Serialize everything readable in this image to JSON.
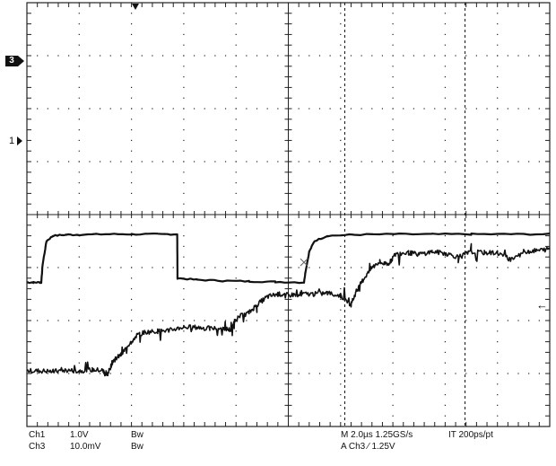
{
  "chart_data": {
    "type": "line",
    "grid": true,
    "x_divisions": 10,
    "y_divisions": 8,
    "series": [
      {
        "name": "Ch1",
        "values_note": "",
        "points": [
          [
            0,
            2.72
          ],
          [
            0.25,
            2.72
          ],
          [
            0.5,
            2.72
          ],
          [
            0.55,
            2.72
          ],
          [
            0.6,
            3.05
          ],
          [
            0.75,
            3.5
          ],
          [
            1.0,
            3.6
          ],
          [
            1.5,
            3.62
          ],
          [
            2.0,
            3.62
          ],
          [
            3.0,
            3.63
          ],
          [
            4.0,
            3.63
          ],
          [
            5.0,
            3.63
          ],
          [
            5.75,
            3.63
          ],
          [
            5.76,
            2.8
          ],
          [
            6.5,
            2.77
          ],
          [
            7.5,
            2.75
          ],
          [
            8.5,
            2.74
          ],
          [
            9.5,
            2.73
          ],
          [
            10.6,
            2.72
          ],
          [
            10.65,
            2.9
          ],
          [
            10.8,
            3.3
          ],
          [
            11.0,
            3.5
          ],
          [
            11.5,
            3.6
          ],
          [
            12.5,
            3.62
          ],
          [
            14,
            3.63
          ],
          [
            15.5,
            3.63
          ],
          [
            17,
            3.63
          ],
          [
            18.5,
            3.63
          ],
          [
            20,
            3.63
          ]
        ]
      },
      {
        "name": "Ch3",
        "points": [
          [
            0,
            1.05
          ],
          [
            0.5,
            1.05
          ],
          [
            1.0,
            1.04
          ],
          [
            1.5,
            1.06
          ],
          [
            2.0,
            1.05
          ],
          [
            2.5,
            1.07
          ],
          [
            2.9,
            1.06
          ],
          [
            3.0,
            0.98
          ],
          [
            3.1,
            1.0
          ],
          [
            3.3,
            1.25
          ],
          [
            3.6,
            1.35
          ],
          [
            3.9,
            1.55
          ],
          [
            4.2,
            1.72
          ],
          [
            4.5,
            1.78
          ],
          [
            5.0,
            1.8
          ],
          [
            5.5,
            1.82
          ],
          [
            6.0,
            1.88
          ],
          [
            6.5,
            1.87
          ],
          [
            7.0,
            1.85
          ],
          [
            7.5,
            1.86
          ],
          [
            7.8,
            1.82
          ],
          [
            8.0,
            2.05
          ],
          [
            8.5,
            2.15
          ],
          [
            8.8,
            2.3
          ],
          [
            9.2,
            2.45
          ],
          [
            9.6,
            2.5
          ],
          [
            10.0,
            2.48
          ],
          [
            10.5,
            2.5
          ],
          [
            11.0,
            2.5
          ],
          [
            11.5,
            2.52
          ],
          [
            12.0,
            2.47
          ],
          [
            12.4,
            2.3
          ],
          [
            12.6,
            2.55
          ],
          [
            12.9,
            2.8
          ],
          [
            13.2,
            3.0
          ],
          [
            13.5,
            3.1
          ],
          [
            13.8,
            3.05
          ],
          [
            14.1,
            3.25
          ],
          [
            14.6,
            3.28
          ],
          [
            15.0,
            3.25
          ],
          [
            15.5,
            3.3
          ],
          [
            16.0,
            3.27
          ],
          [
            16.5,
            3.2
          ],
          [
            17.0,
            3.3
          ],
          [
            17.5,
            3.28
          ],
          [
            18.0,
            3.28
          ],
          [
            18.5,
            3.15
          ],
          [
            19.0,
            3.3
          ],
          [
            19.5,
            3.32
          ],
          [
            20,
            3.35
          ]
        ]
      }
    ],
    "ch1_marker_label": "1",
    "ch3_marker_label": "3",
    "trigger_arrow": "←"
  },
  "readout": {
    "ch1": "Ch1",
    "ch1_scale": "1.0V",
    "ch1_bw": "Bw",
    "ch3": "Ch3",
    "ch3_scale": "10.0mV",
    "ch3_bw": "Bw",
    "timebase": "M 2.0µs 1.25GS/s",
    "record": "IT 200ps/pt",
    "trigger": "A  Ch3  ⁄  1.25V"
  },
  "colors": {
    "trace": "#111111",
    "grid": "#222222",
    "background": "#ffffff"
  }
}
